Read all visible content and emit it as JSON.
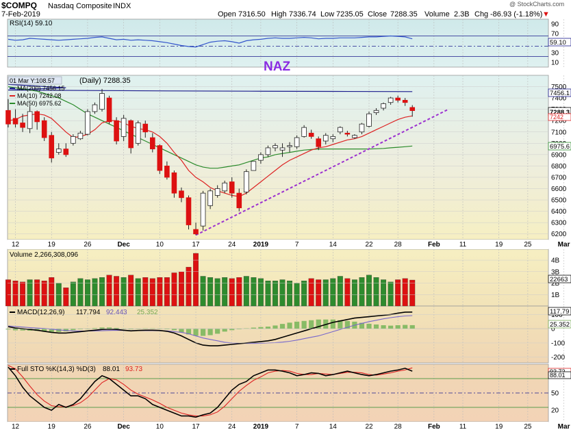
{
  "header": {
    "symbol": "$COMPQ",
    "name": "Nasdaq Composite",
    "exchange": "INDX",
    "date": "7-Feb-2019",
    "watermark": "@ StockCharts.com",
    "open_label": "Open",
    "open": "7316.50",
    "high_label": "High",
    "high": "7336.74",
    "low_label": "Low",
    "low": "7235.05",
    "close_label": "Close",
    "close": "7288.35",
    "volume_label": "Volume",
    "volume": "2.3B",
    "chg_label": "Chg",
    "chg": "-86.93 (-1.18%)",
    "chg_arrow": "▼"
  },
  "rsi": {
    "legend": "RSI(14) 59.10",
    "value_box": "59.10",
    "axis_ticks": [
      "90",
      "70",
      "50",
      "30",
      "10"
    ]
  },
  "price": {
    "annotation": "NAZ",
    "tooltip": "01 Mar Y:108.57",
    "legend_main": "(Daily) 7288.35",
    "legend_ma200": "MA(200) 7456.15",
    "legend_ma10": "MA(10) 7242.08",
    "legend_ma50": "MA(50) 6975.62",
    "value_boxes": [
      "7456.1",
      "7288.3",
      "7242",
      "6975.6"
    ],
    "axis_ticks": [
      "7500",
      "7400",
      "7300",
      "7200",
      "7100",
      "7000",
      "6900",
      "6800",
      "6700",
      "6600",
      "6500",
      "6400",
      "6300",
      "6200"
    ]
  },
  "xaxis": {
    "labels": [
      "12",
      "19",
      "26",
      "Dec",
      "10",
      "17",
      "24",
      "2019",
      "7",
      "14",
      "22",
      "28",
      "Feb",
      "11",
      "19",
      "25",
      "Mar"
    ],
    "bottom_labels": [
      "12",
      "19",
      "26",
      "Dec",
      "10",
      "17",
      "24",
      "2019",
      "7",
      "14",
      "22",
      "28",
      "Feb",
      "11",
      "19",
      "25",
      "Mar"
    ]
  },
  "volume": {
    "legend": "Volume 2,266,308,096",
    "value_box": "22663",
    "axis_ticks": [
      "4B",
      "3B",
      "2B",
      "1B"
    ]
  },
  "macd": {
    "legend_name": "MACD(12,26,9)",
    "legend_v1": "117.794",
    "legend_v2": "92.443",
    "legend_v3": "25.352",
    "value_boxes": [
      "117.79",
      "25.352"
    ],
    "axis_ticks": [
      "100",
      "0",
      "-100",
      "-200"
    ]
  },
  "sto": {
    "legend_name": "Full STO %K(14,3) %D(3)",
    "legend_v1": "88.01",
    "legend_v2": "93.73",
    "value_boxes": [
      "93.73",
      "88.01"
    ],
    "axis_ticks": [
      "80",
      "50",
      "20"
    ]
  },
  "colors": {
    "up": "#2e8b2e",
    "down": "#dd1111",
    "ma200": "#1a1a8c",
    "ma10": "#dd2222",
    "ma50": "#2a8a2a",
    "trendline": "#9b30d0",
    "annotation": "#8a2be2",
    "rsi_line": "#3355cc",
    "macd_line": "#000000",
    "signal_line": "#7766cc",
    "histogram": "#88bb66",
    "sto_k": "#000000",
    "sto_d": "#dd2222"
  },
  "chart_data": [
    {
      "type": "candlestick",
      "title": "$COMPQ Nasdaq Composite INDX",
      "ylim": [
        6150,
        7600
      ],
      "trading_days": 57,
      "candles": [
        {
          "o": 7290,
          "h": 7390,
          "l": 7140,
          "c": 7170
        },
        {
          "o": 7220,
          "h": 7300,
          "l": 7140,
          "c": 7170
        },
        {
          "o": 7180,
          "h": 7260,
          "l": 7100,
          "c": 7140
        },
        {
          "o": 7130,
          "h": 7330,
          "l": 7090,
          "c": 7280
        },
        {
          "o": 7280,
          "h": 7290,
          "l": 7120,
          "c": 7190
        },
        {
          "o": 7200,
          "h": 7230,
          "l": 7020,
          "c": 7050
        },
        {
          "o": 7070,
          "h": 7100,
          "l": 6830,
          "c": 6870
        },
        {
          "o": 6920,
          "h": 7000,
          "l": 6900,
          "c": 6950
        },
        {
          "o": 6950,
          "h": 7000,
          "l": 6880,
          "c": 6900
        },
        {
          "o": 7000,
          "h": 7080,
          "l": 6980,
          "c": 7060
        },
        {
          "o": 7040,
          "h": 7110,
          "l": 7030,
          "c": 7090
        },
        {
          "o": 7080,
          "h": 7300,
          "l": 7070,
          "c": 7280
        },
        {
          "o": 7280,
          "h": 7360,
          "l": 7260,
          "c": 7340
        },
        {
          "o": 7300,
          "h": 7480,
          "l": 7280,
          "c": 7440
        },
        {
          "o": 7400,
          "h": 7420,
          "l": 7170,
          "c": 7190
        },
        {
          "o": 7200,
          "h": 7230,
          "l": 6990,
          "c": 7020
        },
        {
          "o": 7060,
          "h": 7250,
          "l": 7020,
          "c": 7220
        },
        {
          "o": 7200,
          "h": 7210,
          "l": 6910,
          "c": 6960
        },
        {
          "o": 7000,
          "h": 7200,
          "l": 6980,
          "c": 7180
        },
        {
          "o": 7170,
          "h": 7200,
          "l": 7050,
          "c": 7100
        },
        {
          "o": 7050,
          "h": 7090,
          "l": 6920,
          "c": 6950
        },
        {
          "o": 6980,
          "h": 6990,
          "l": 6730,
          "c": 6760
        },
        {
          "o": 6800,
          "h": 6840,
          "l": 6680,
          "c": 6700
        },
        {
          "o": 6740,
          "h": 6760,
          "l": 6520,
          "c": 6560
        },
        {
          "o": 6580,
          "h": 6610,
          "l": 6480,
          "c": 6520
        },
        {
          "o": 6520,
          "h": 6540,
          "l": 6240,
          "c": 6280
        },
        {
          "o": 6240,
          "h": 6300,
          "l": 6190,
          "c": 6200
        },
        {
          "o": 6270,
          "h": 6580,
          "l": 6230,
          "c": 6560
        },
        {
          "o": 6450,
          "h": 6600,
          "l": 6420,
          "c": 6580
        },
        {
          "o": 6540,
          "h": 6630,
          "l": 6520,
          "c": 6600
        },
        {
          "o": 6580,
          "h": 6670,
          "l": 6560,
          "c": 6650
        },
        {
          "o": 6660,
          "h": 6700,
          "l": 6520,
          "c": 6560
        },
        {
          "o": 6560,
          "h": 6600,
          "l": 6400,
          "c": 6430
        },
        {
          "o": 6570,
          "h": 6770,
          "l": 6550,
          "c": 6750
        },
        {
          "o": 6760,
          "h": 6840,
          "l": 6760,
          "c": 6840
        },
        {
          "o": 6850,
          "h": 6920,
          "l": 6820,
          "c": 6900
        },
        {
          "o": 6900,
          "h": 6980,
          "l": 6880,
          "c": 6960
        },
        {
          "o": 6960,
          "h": 7000,
          "l": 6930,
          "c": 6980
        },
        {
          "o": 6940,
          "h": 7000,
          "l": 6880,
          "c": 6960
        },
        {
          "o": 6970,
          "h": 7010,
          "l": 6920,
          "c": 6980
        },
        {
          "o": 6970,
          "h": 7070,
          "l": 6950,
          "c": 7050
        },
        {
          "o": 7060,
          "h": 7160,
          "l": 7050,
          "c": 7140
        },
        {
          "o": 7090,
          "h": 7120,
          "l": 7040,
          "c": 7060
        },
        {
          "o": 7040,
          "h": 7060,
          "l": 6940,
          "c": 6970
        },
        {
          "o": 7020,
          "h": 7090,
          "l": 6990,
          "c": 7070
        },
        {
          "o": 7040,
          "h": 7080,
          "l": 7010,
          "c": 7060
        },
        {
          "o": 7100,
          "h": 7150,
          "l": 7080,
          "c": 7140
        },
        {
          "o": 7090,
          "h": 7110,
          "l": 7060,
          "c": 7080
        },
        {
          "o": 7050,
          "h": 7080,
          "l": 7040,
          "c": 7070
        },
        {
          "o": 7100,
          "h": 7180,
          "l": 7080,
          "c": 7170
        },
        {
          "o": 7150,
          "h": 7280,
          "l": 7140,
          "c": 7260
        },
        {
          "o": 7270,
          "h": 7310,
          "l": 7250,
          "c": 7290
        },
        {
          "o": 7310,
          "h": 7360,
          "l": 7290,
          "c": 7350
        },
        {
          "o": 7360,
          "h": 7410,
          "l": 7340,
          "c": 7400
        },
        {
          "o": 7400,
          "h": 7420,
          "l": 7360,
          "c": 7380
        },
        {
          "o": 7380,
          "h": 7400,
          "l": 7330,
          "c": 7360
        },
        {
          "o": 7316.5,
          "h": 7336.74,
          "l": 7235.05,
          "c": 7288.35
        }
      ],
      "ma200": [
        7470,
        7466,
        7462,
        7460,
        7458,
        7456
      ],
      "ma10": [
        7200,
        7210,
        7240,
        7250,
        7260,
        7250,
        7220,
        7160,
        7100,
        7050,
        7060,
        7080,
        7120,
        7180,
        7200,
        7200,
        7180,
        7150,
        7130,
        7120,
        7100,
        7060,
        7000,
        6920,
        6850,
        6760,
        6700,
        6660,
        6610,
        6580,
        6560,
        6540,
        6530,
        6560,
        6610,
        6660,
        6710,
        6760,
        6810,
        6850,
        6880,
        6910,
        6940,
        6960,
        6970,
        6990,
        7010,
        7030,
        7040,
        7060,
        7090,
        7120,
        7150,
        7180,
        7210,
        7230,
        7242
      ],
      "ma50": [
        7500,
        7490,
        7480,
        7470,
        7460,
        7440,
        7420,
        7400,
        7370,
        7340,
        7300,
        7260,
        7230,
        7200,
        7170,
        7140,
        7110,
        7080,
        7050,
        7020,
        6990,
        6960,
        6930,
        6900,
        6870,
        6840,
        6810,
        6790,
        6780,
        6780,
        6790,
        6800,
        6810,
        6830,
        6850,
        6870,
        6880,
        6900,
        6910,
        6920,
        6930,
        6940,
        6945,
        6950,
        6950,
        6950,
        6950,
        6950,
        6950,
        6950,
        6950,
        6952,
        6955,
        6960,
        6965,
        6970,
        6975.62
      ],
      "trendline": {
        "start_day": 26,
        "start_value": 6190,
        "end_day": 61,
        "end_value": 7300
      }
    },
    {
      "type": "line",
      "name": "RSI(14)",
      "ylim": [
        0,
        100
      ],
      "values": [
        58,
        56,
        57,
        60,
        59,
        58,
        57,
        56,
        57,
        58,
        59,
        60,
        62,
        63,
        60,
        57,
        58,
        56,
        57,
        56,
        55,
        53,
        51,
        48,
        45,
        43,
        42,
        47,
        52,
        54,
        55,
        53,
        50,
        55,
        57,
        58,
        60,
        61,
        60,
        60,
        61,
        62,
        61,
        59,
        60,
        60,
        61,
        61,
        61,
        62,
        63,
        63,
        64,
        65,
        64,
        63,
        59
      ]
    },
    {
      "type": "bar",
      "name": "Volume",
      "ylim": [
        0,
        4.6
      ],
      "values": [
        2.3,
        2.2,
        2.1,
        2.3,
        2.3,
        2.2,
        2.5,
        2.0,
        1.6,
        2.1,
        2.4,
        2.3,
        2.4,
        2.5,
        2.7,
        2.6,
        2.5,
        2.7,
        2.4,
        2.5,
        2.4,
        2.5,
        2.5,
        2.9,
        3.0,
        3.4,
        4.6,
        2.6,
        2.5,
        2.4,
        2.5,
        2.4,
        2.5,
        2.6,
        2.5,
        2.4,
        2.2,
        2.2,
        2.3,
        2.2,
        2.0,
        2.2,
        2.4,
        2.3,
        2.3,
        2.4,
        2.6,
        2.4,
        2.3,
        2.5,
        2.7,
        2.5,
        2.3,
        2.1,
        2.3,
        2.4,
        2.27
      ]
    },
    {
      "type": "line",
      "name": "MACD(12,26,9)",
      "ylim": [
        -240,
        160
      ],
      "macd": [
        15,
        5,
        0,
        -5,
        -10,
        -18,
        -25,
        -30,
        -30,
        -25,
        -20,
        -15,
        -10,
        -5,
        -3,
        -5,
        -10,
        -15,
        -12,
        -10,
        -10,
        -12,
        -18,
        -30,
        -50,
        -75,
        -100,
        -115,
        -120,
        -120,
        -115,
        -110,
        -105,
        -100,
        -95,
        -90,
        -85,
        -75,
        -60,
        -45,
        -30,
        -15,
        0,
        15,
        30,
        45,
        55,
        65,
        75,
        80,
        85,
        90,
        95,
        100,
        110,
        117,
        117.794
      ],
      "signal": [
        20,
        16,
        12,
        8,
        5,
        2,
        -3,
        -8,
        -12,
        -15,
        -16,
        -16,
        -15,
        -14,
        -12,
        -11,
        -12,
        -13,
        -13,
        -13,
        -13,
        -14,
        -15,
        -20,
        -25,
        -35,
        -50,
        -65,
        -75,
        -85,
        -95,
        -100,
        -102,
        -103,
        -103,
        -102,
        -100,
        -98,
        -94,
        -88,
        -80,
        -70,
        -60,
        -50,
        -35,
        -20,
        -5,
        10,
        25,
        38,
        50,
        60,
        70,
        78,
        85,
        90,
        92.443
      ],
      "histogram": [
        -5,
        -11,
        -12,
        -13,
        -15,
        -20,
        -22,
        -22,
        -18,
        -10,
        -4,
        1,
        5,
        9,
        9,
        6,
        2,
        -2,
        1,
        3,
        3,
        2,
        -3,
        -10,
        -25,
        -40,
        -50,
        -50,
        -45,
        -35,
        -20,
        -10,
        -3,
        3,
        8,
        12,
        15,
        23,
        34,
        43,
        50,
        55,
        60,
        65,
        65,
        65,
        60,
        55,
        50,
        42,
        35,
        30,
        25,
        22,
        25,
        27,
        25.352
      ]
    },
    {
      "type": "line",
      "name": "Full STO %K(14,3) %D(3)",
      "ylim": [
        0,
        100
      ],
      "k": [
        95,
        80,
        60,
        45,
        35,
        25,
        20,
        30,
        25,
        30,
        40,
        55,
        70,
        80,
        75,
        65,
        55,
        45,
        45,
        40,
        30,
        25,
        20,
        15,
        10,
        10,
        8,
        12,
        15,
        25,
        40,
        55,
        65,
        70,
        80,
        85,
        90,
        90,
        88,
        85,
        80,
        82,
        85,
        84,
        80,
        82,
        85,
        88,
        85,
        82,
        80,
        82,
        85,
        88,
        90,
        93,
        88.01
      ],
      "d": [
        98,
        92,
        78,
        62,
        47,
        36,
        28,
        26,
        26,
        28,
        33,
        42,
        55,
        68,
        75,
        73,
        65,
        55,
        48,
        43,
        38,
        32,
        25,
        20,
        15,
        12,
        10,
        10,
        12,
        17,
        27,
        40,
        53,
        63,
        72,
        78,
        85,
        88,
        89,
        88,
        84,
        82,
        82,
        84,
        83,
        82,
        84,
        86,
        86,
        85,
        82,
        81,
        83,
        85,
        88,
        90,
        93.73
      ]
    }
  ]
}
